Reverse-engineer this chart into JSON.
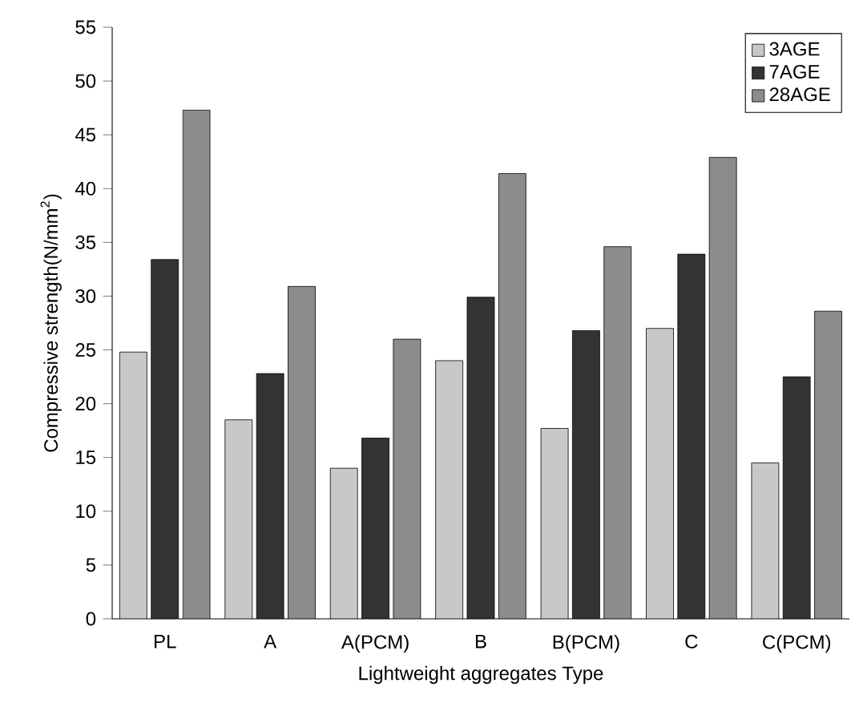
{
  "chart_data": {
    "type": "bar",
    "xlabel": "Lightweight aggregates Type",
    "ylabel": "Compressive strength(N/mm$^{2}$)",
    "categories": [
      "PL",
      "A",
      "A(PCM)",
      "B",
      "B(PCM)",
      "C",
      "C(PCM)"
    ],
    "series": [
      {
        "name": "3AGE",
        "color": "#c8c8c8",
        "values": [
          24.8,
          18.5,
          14.0,
          24.0,
          17.7,
          27.0,
          14.5
        ]
      },
      {
        "name": "7AGE",
        "color": "#333333",
        "values": [
          33.4,
          22.8,
          16.8,
          29.9,
          26.8,
          33.9,
          22.5
        ]
      },
      {
        "name": "28AGE",
        "color": "#8c8c8c",
        "values": [
          47.3,
          30.9,
          26.0,
          41.4,
          34.6,
          42.9,
          28.6
        ]
      }
    ],
    "ylim": [
      0,
      55
    ],
    "yticks": [
      0,
      5,
      10,
      15,
      20,
      25,
      30,
      35,
      40,
      45,
      50,
      55
    ],
    "grid": false,
    "legend": "top right"
  }
}
